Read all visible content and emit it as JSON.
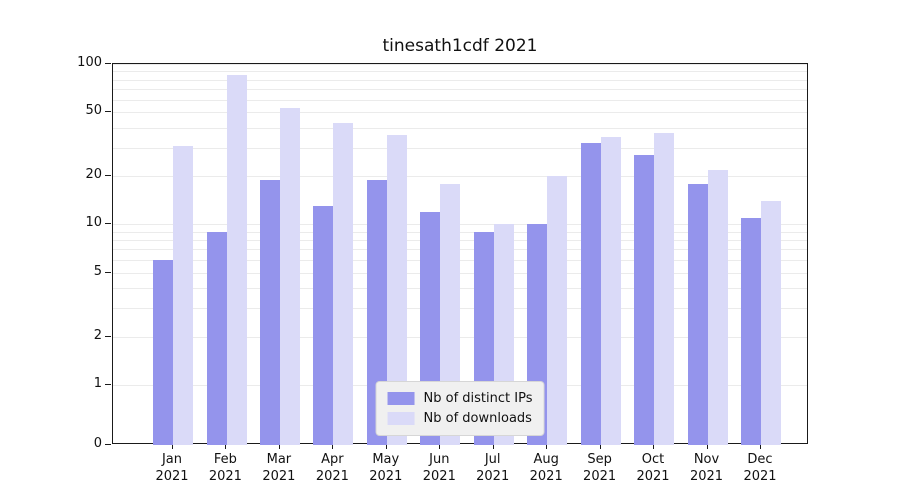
{
  "chart_data": {
    "type": "bar",
    "title": "tinesath1cdf 2021",
    "categories": [
      "Jan",
      "Feb",
      "Mar",
      "Apr",
      "May",
      "Jun",
      "Jul",
      "Aug",
      "Sep",
      "Oct",
      "Nov",
      "Dec"
    ],
    "year_label": "2021",
    "series": [
      {
        "name": "Nb of distinct IPs",
        "color": "#9494ec",
        "values": [
          6,
          9,
          19,
          13,
          19,
          12,
          9,
          10,
          32,
          27,
          18,
          11
        ]
      },
      {
        "name": "Nb of downloads",
        "color": "#dadaf8",
        "values": [
          31,
          85,
          53,
          43,
          36,
          18,
          10,
          20,
          35,
          37,
          22,
          14
        ]
      }
    ],
    "yscale": "symlog",
    "ylim": [
      0,
      100
    ],
    "yticks": [
      0,
      1,
      2,
      5,
      10,
      20,
      50,
      100
    ],
    "minor_gridlines": [
      3,
      4,
      6,
      7,
      8,
      9,
      30,
      40,
      60,
      70,
      80,
      90
    ],
    "grid": true,
    "legend_position": "lower center"
  }
}
